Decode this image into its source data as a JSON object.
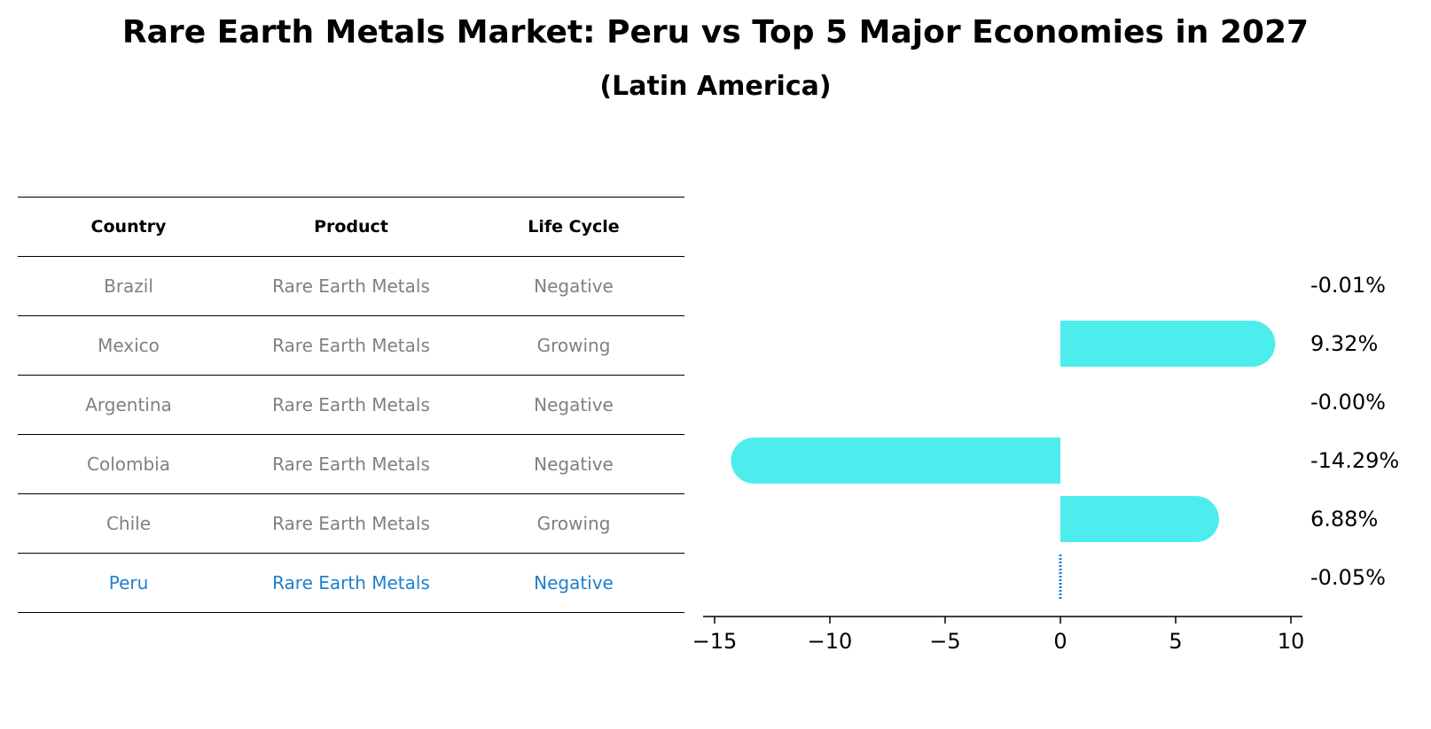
{
  "header": {
    "title": "Rare Earth Metals Market: Peru vs Top 5 Major Economies in 2027",
    "subtitle": "(Latin America)"
  },
  "table": {
    "columns": [
      "Country",
      "Product",
      "Life Cycle"
    ],
    "rows": [
      {
        "country": "Brazil",
        "product": "Rare Earth Metals",
        "life_cycle": "Negative"
      },
      {
        "country": "Mexico",
        "product": "Rare Earth Metals",
        "life_cycle": "Growing"
      },
      {
        "country": "Argentina",
        "product": "Rare Earth Metals",
        "life_cycle": "Negative"
      },
      {
        "country": "Colombia",
        "product": "Rare Earth Metals",
        "life_cycle": "Negative"
      },
      {
        "country": "Chile",
        "product": "Rare Earth Metals",
        "life_cycle": "Growing"
      },
      {
        "country": "Peru",
        "product": "Rare Earth Metals",
        "life_cycle": "Negative"
      }
    ],
    "highlight_row": "Peru",
    "text_color": "#808080",
    "highlight_color": "#1f7fcc"
  },
  "chart_data": {
    "type": "bar",
    "orientation": "horizontal",
    "title": "Rare Earth Metals Market: Peru vs Top 5 Major Economies in 2027",
    "subtitle": "(Latin America)",
    "categories": [
      "Brazil",
      "Mexico",
      "Argentina",
      "Colombia",
      "Chile",
      "Peru"
    ],
    "values": [
      -0.01,
      9.32,
      -0.0,
      -14.29,
      6.88,
      -0.05
    ],
    "value_labels": [
      "-0.01%",
      "9.32%",
      "-0.00%",
      "-14.29%",
      "6.88%",
      "-0.05%"
    ],
    "xlim": [
      -15.5,
      10.5
    ],
    "xticks": [
      -15,
      -10,
      -5,
      0,
      5,
      10
    ],
    "xtick_labels": [
      "−15",
      "−10",
      "−5",
      "0",
      "5",
      "10"
    ],
    "xlabel": "",
    "ylabel": "",
    "grid": false,
    "bar_color": "#4deced",
    "highlight_category": "Peru",
    "highlight_color": "#1f7fcc"
  }
}
